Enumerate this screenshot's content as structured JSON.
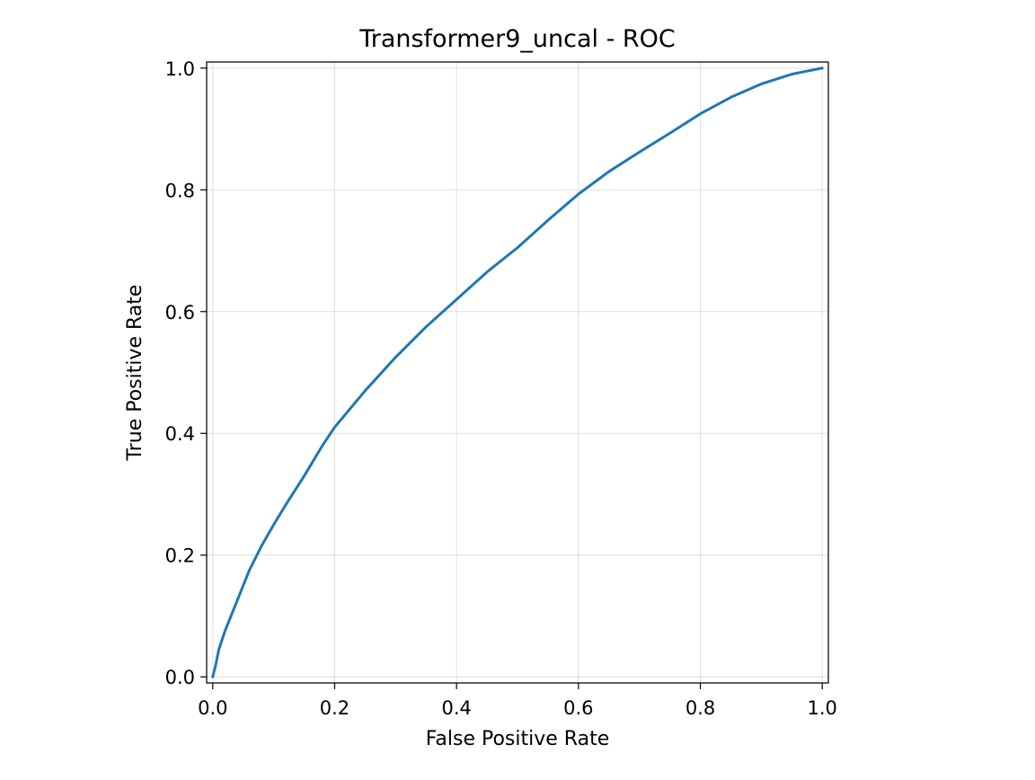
{
  "chart_data": {
    "type": "line",
    "title": "Transformer9_uncal - ROC",
    "xlabel": "False Positive Rate",
    "ylabel": "True Positive Rate",
    "xlim": [
      -0.01,
      1.01
    ],
    "ylim": [
      -0.01,
      1.01
    ],
    "xticks": [
      0.0,
      0.2,
      0.4,
      0.6,
      0.8,
      1.0
    ],
    "yticks": [
      0.0,
      0.2,
      0.4,
      0.6,
      0.8,
      1.0
    ],
    "xtick_labels": [
      "0.0",
      "0.2",
      "0.4",
      "0.6",
      "0.8",
      "1.0"
    ],
    "ytick_labels": [
      "0.0",
      "0.2",
      "0.4",
      "0.6",
      "0.8",
      "1.0"
    ],
    "grid": true,
    "legend": "none",
    "series": [
      {
        "color": "#1f77b4",
        "x": [
          0.0,
          0.005,
          0.01,
          0.02,
          0.03,
          0.04,
          0.05,
          0.06,
          0.07,
          0.08,
          0.1,
          0.12,
          0.15,
          0.18,
          0.2,
          0.25,
          0.3,
          0.35,
          0.4,
          0.45,
          0.5,
          0.55,
          0.6,
          0.65,
          0.7,
          0.75,
          0.8,
          0.85,
          0.9,
          0.95,
          1.0
        ],
        "y": [
          0.0,
          0.02,
          0.045,
          0.075,
          0.1,
          0.125,
          0.15,
          0.175,
          0.195,
          0.215,
          0.25,
          0.283,
          0.33,
          0.38,
          0.41,
          0.47,
          0.525,
          0.575,
          0.62,
          0.665,
          0.705,
          0.75,
          0.793,
          0.83,
          0.862,
          0.893,
          0.925,
          0.952,
          0.974,
          0.99,
          1.0
        ]
      }
    ]
  }
}
